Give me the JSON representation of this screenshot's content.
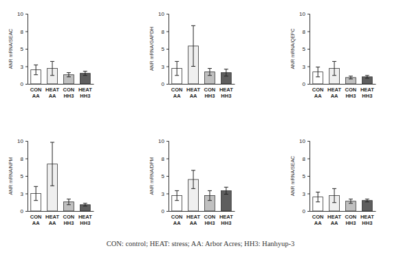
{
  "chart_data": [
    {
      "type": "bar",
      "y_label": "ANR mRNA/SEAC",
      "categories": [
        "CON AA",
        "HEAT AA",
        "CON HH3",
        "HEAT HH3"
      ],
      "values": [
        2.0,
        2.2,
        1.3,
        1.5
      ],
      "error": [
        0.7,
        1.0,
        0.3,
        0.3
      ],
      "colors": [
        "#ffffff",
        "#efefef",
        "#c0c0c0",
        "#5e5e5e"
      ],
      "ylim": [
        0,
        10
      ],
      "yticks": [
        0,
        {
          "value": 2.5,
          "label": "3"
        },
        5,
        {
          "value": 7.5,
          "label": "8"
        },
        10
      ]
    },
    {
      "type": "bar",
      "y_label": "ANR mRNA/GAPDH",
      "categories": [
        "CON AA",
        "HEAT AA",
        "CON HH3",
        "HEAT HH3"
      ],
      "values": [
        2.2,
        5.4,
        1.7,
        1.6
      ],
      "error": [
        1.0,
        2.9,
        0.5,
        0.5
      ],
      "colors": [
        "#ffffff",
        "#efefef",
        "#c0c0c0",
        "#5e5e5e"
      ],
      "ylim": [
        0,
        10
      ],
      "yticks": [
        0,
        {
          "value": 2.5,
          "label": "3"
        },
        5,
        {
          "value": 7.5,
          "label": "8"
        },
        10
      ]
    },
    {
      "type": "bar",
      "y_label": "ANR mRNA/QEPC",
      "categories": [
        "CON AA",
        "HEAT AA",
        "CON HH3",
        "HEAT HH3"
      ],
      "values": [
        1.7,
        2.2,
        0.9,
        1.0
      ],
      "error": [
        0.7,
        1.0,
        0.2,
        0.2
      ],
      "colors": [
        "#ffffff",
        "#efefef",
        "#c0c0c0",
        "#5e5e5e"
      ],
      "ylim": [
        0,
        10
      ],
      "yticks": [
        0,
        {
          "value": 2.5,
          "label": "3"
        },
        5,
        {
          "value": 7.5,
          "label": "8"
        },
        10
      ]
    },
    {
      "type": "bar",
      "y_label": "ANR mRNA/NPM",
      "categories": [
        "CON AA",
        "HEAT AA",
        "CON HH3",
        "HEAT HH3"
      ],
      "values": [
        2.5,
        6.7,
        1.3,
        0.9
      ],
      "error": [
        1.0,
        3.1,
        0.4,
        0.2
      ],
      "colors": [
        "#ffffff",
        "#efefef",
        "#c0c0c0",
        "#5e5e5e"
      ],
      "ylim": [
        0,
        10
      ],
      "yticks": [
        0,
        {
          "value": 2.5,
          "label": "3"
        },
        5,
        {
          "value": 7.5,
          "label": "8"
        },
        10
      ]
    },
    {
      "type": "bar",
      "y_label": "ANR mRNA/DPM",
      "categories": [
        "CON AA",
        "HEAT AA",
        "CON HH3",
        "HEAT HH3"
      ],
      "values": [
        2.2,
        4.5,
        2.2,
        2.9
      ],
      "error": [
        0.7,
        1.3,
        0.7,
        0.5
      ],
      "colors": [
        "#ffffff",
        "#efefef",
        "#c0c0c0",
        "#5e5e5e"
      ],
      "ylim": [
        0,
        10
      ],
      "yticks": [
        0,
        {
          "value": 2.5,
          "label": "3"
        },
        5,
        {
          "value": 7.5,
          "label": "8"
        },
        10
      ]
    },
    {
      "type": "bar",
      "y_label": "ANR mRNA/SEAC",
      "categories": [
        "CON AA",
        "HEAT AA",
        "CON HH3",
        "HEAT HH3"
      ],
      "values": [
        2.0,
        2.2,
        1.4,
        1.5
      ],
      "error": [
        0.7,
        1.0,
        0.3,
        0.2
      ],
      "colors": [
        "#ffffff",
        "#efefef",
        "#c0c0c0",
        "#5e5e5e"
      ],
      "ylim": [
        0,
        10
      ],
      "yticks": [
        0,
        {
          "value": 2.5,
          "label": "3"
        },
        5,
        {
          "value": 7.5,
          "label": "8"
        },
        10
      ]
    }
  ],
  "caption": "CON: control; HEAT: stress; AA: Arbor Acres; HH3: Hanhyup-3"
}
